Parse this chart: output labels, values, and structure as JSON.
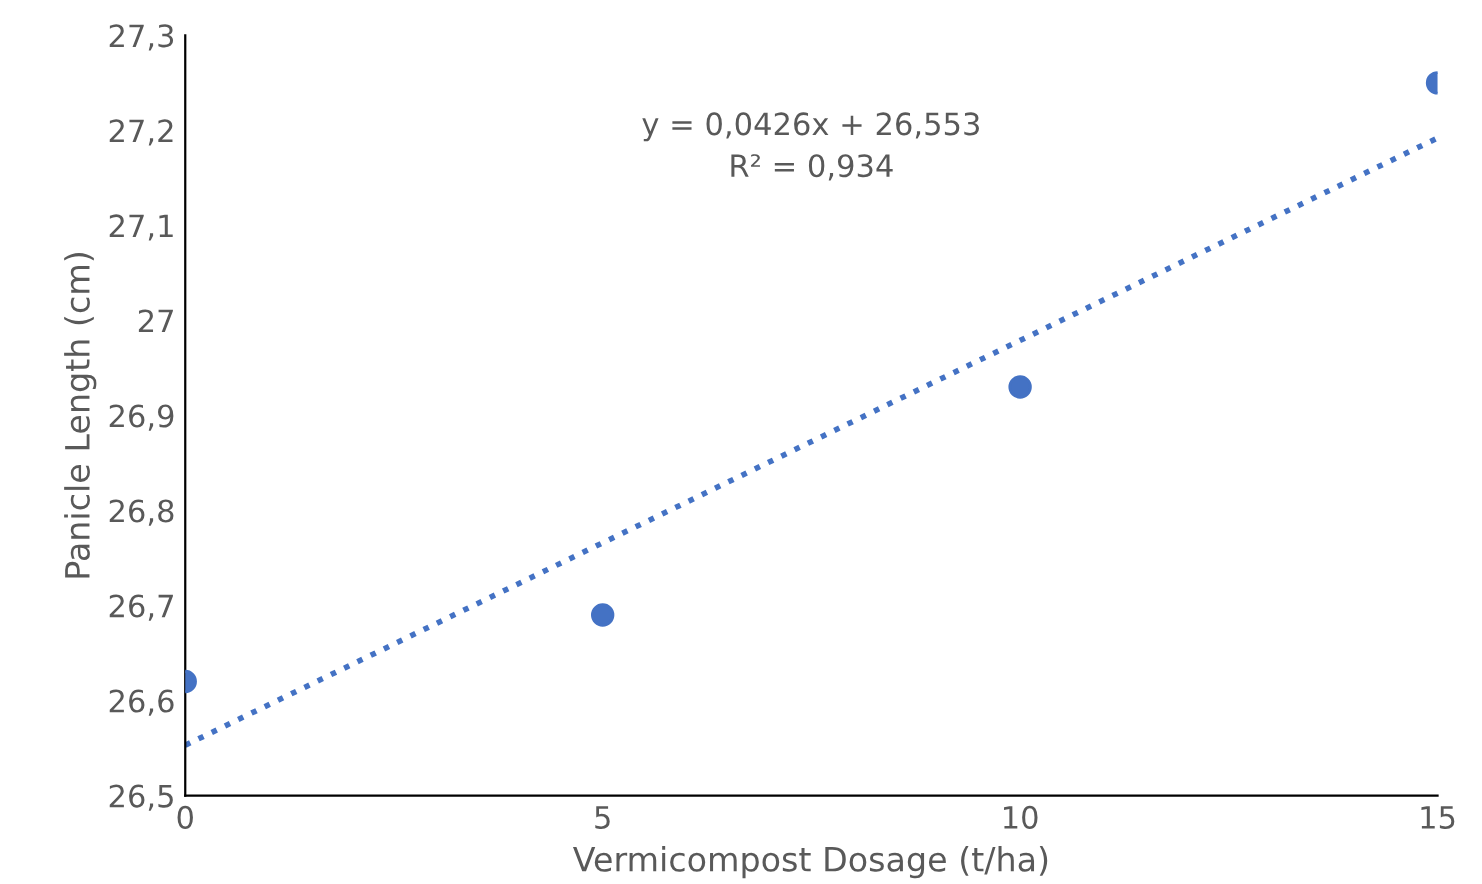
{
  "chart_data": {
    "type": "scatter",
    "xlabel": "Vermicompost Dosage (t/ha)",
    "ylabel": "Panicle Length (cm)",
    "xlim": [
      0,
      15
    ],
    "ylim": [
      26.5,
      27.3
    ],
    "xticks": [
      0,
      5,
      10,
      15
    ],
    "yticks": [
      {
        "value": 26.5,
        "label": "26,5"
      },
      {
        "value": 26.6,
        "label": "26,6"
      },
      {
        "value": 26.7,
        "label": "26,7"
      },
      {
        "value": 26.8,
        "label": "26,8"
      },
      {
        "value": 26.9,
        "label": "26,9"
      },
      {
        "value": 27,
        "label": "27"
      },
      {
        "value": 27.1,
        "label": "27,1"
      },
      {
        "value": 27.2,
        "label": "27,2"
      },
      {
        "value": 27.3,
        "label": "27,3"
      }
    ],
    "grid": false,
    "legend": false,
    "series": [
      {
        "color": "#4472c4",
        "marker": "circle",
        "x": [
          0,
          5,
          10,
          15
        ],
        "values": [
          26.62,
          26.69,
          26.93,
          27.25
        ]
      },
      {
        "type": "line",
        "color": "#4472c4",
        "marker": "none",
        "line_style": "dotted",
        "x": [
          0,
          15
        ],
        "values": [
          26.553,
          27.192
        ]
      }
    ],
    "annotations": [
      "y = 0,0426x + 26,553",
      "R² = 0,934"
    ]
  }
}
